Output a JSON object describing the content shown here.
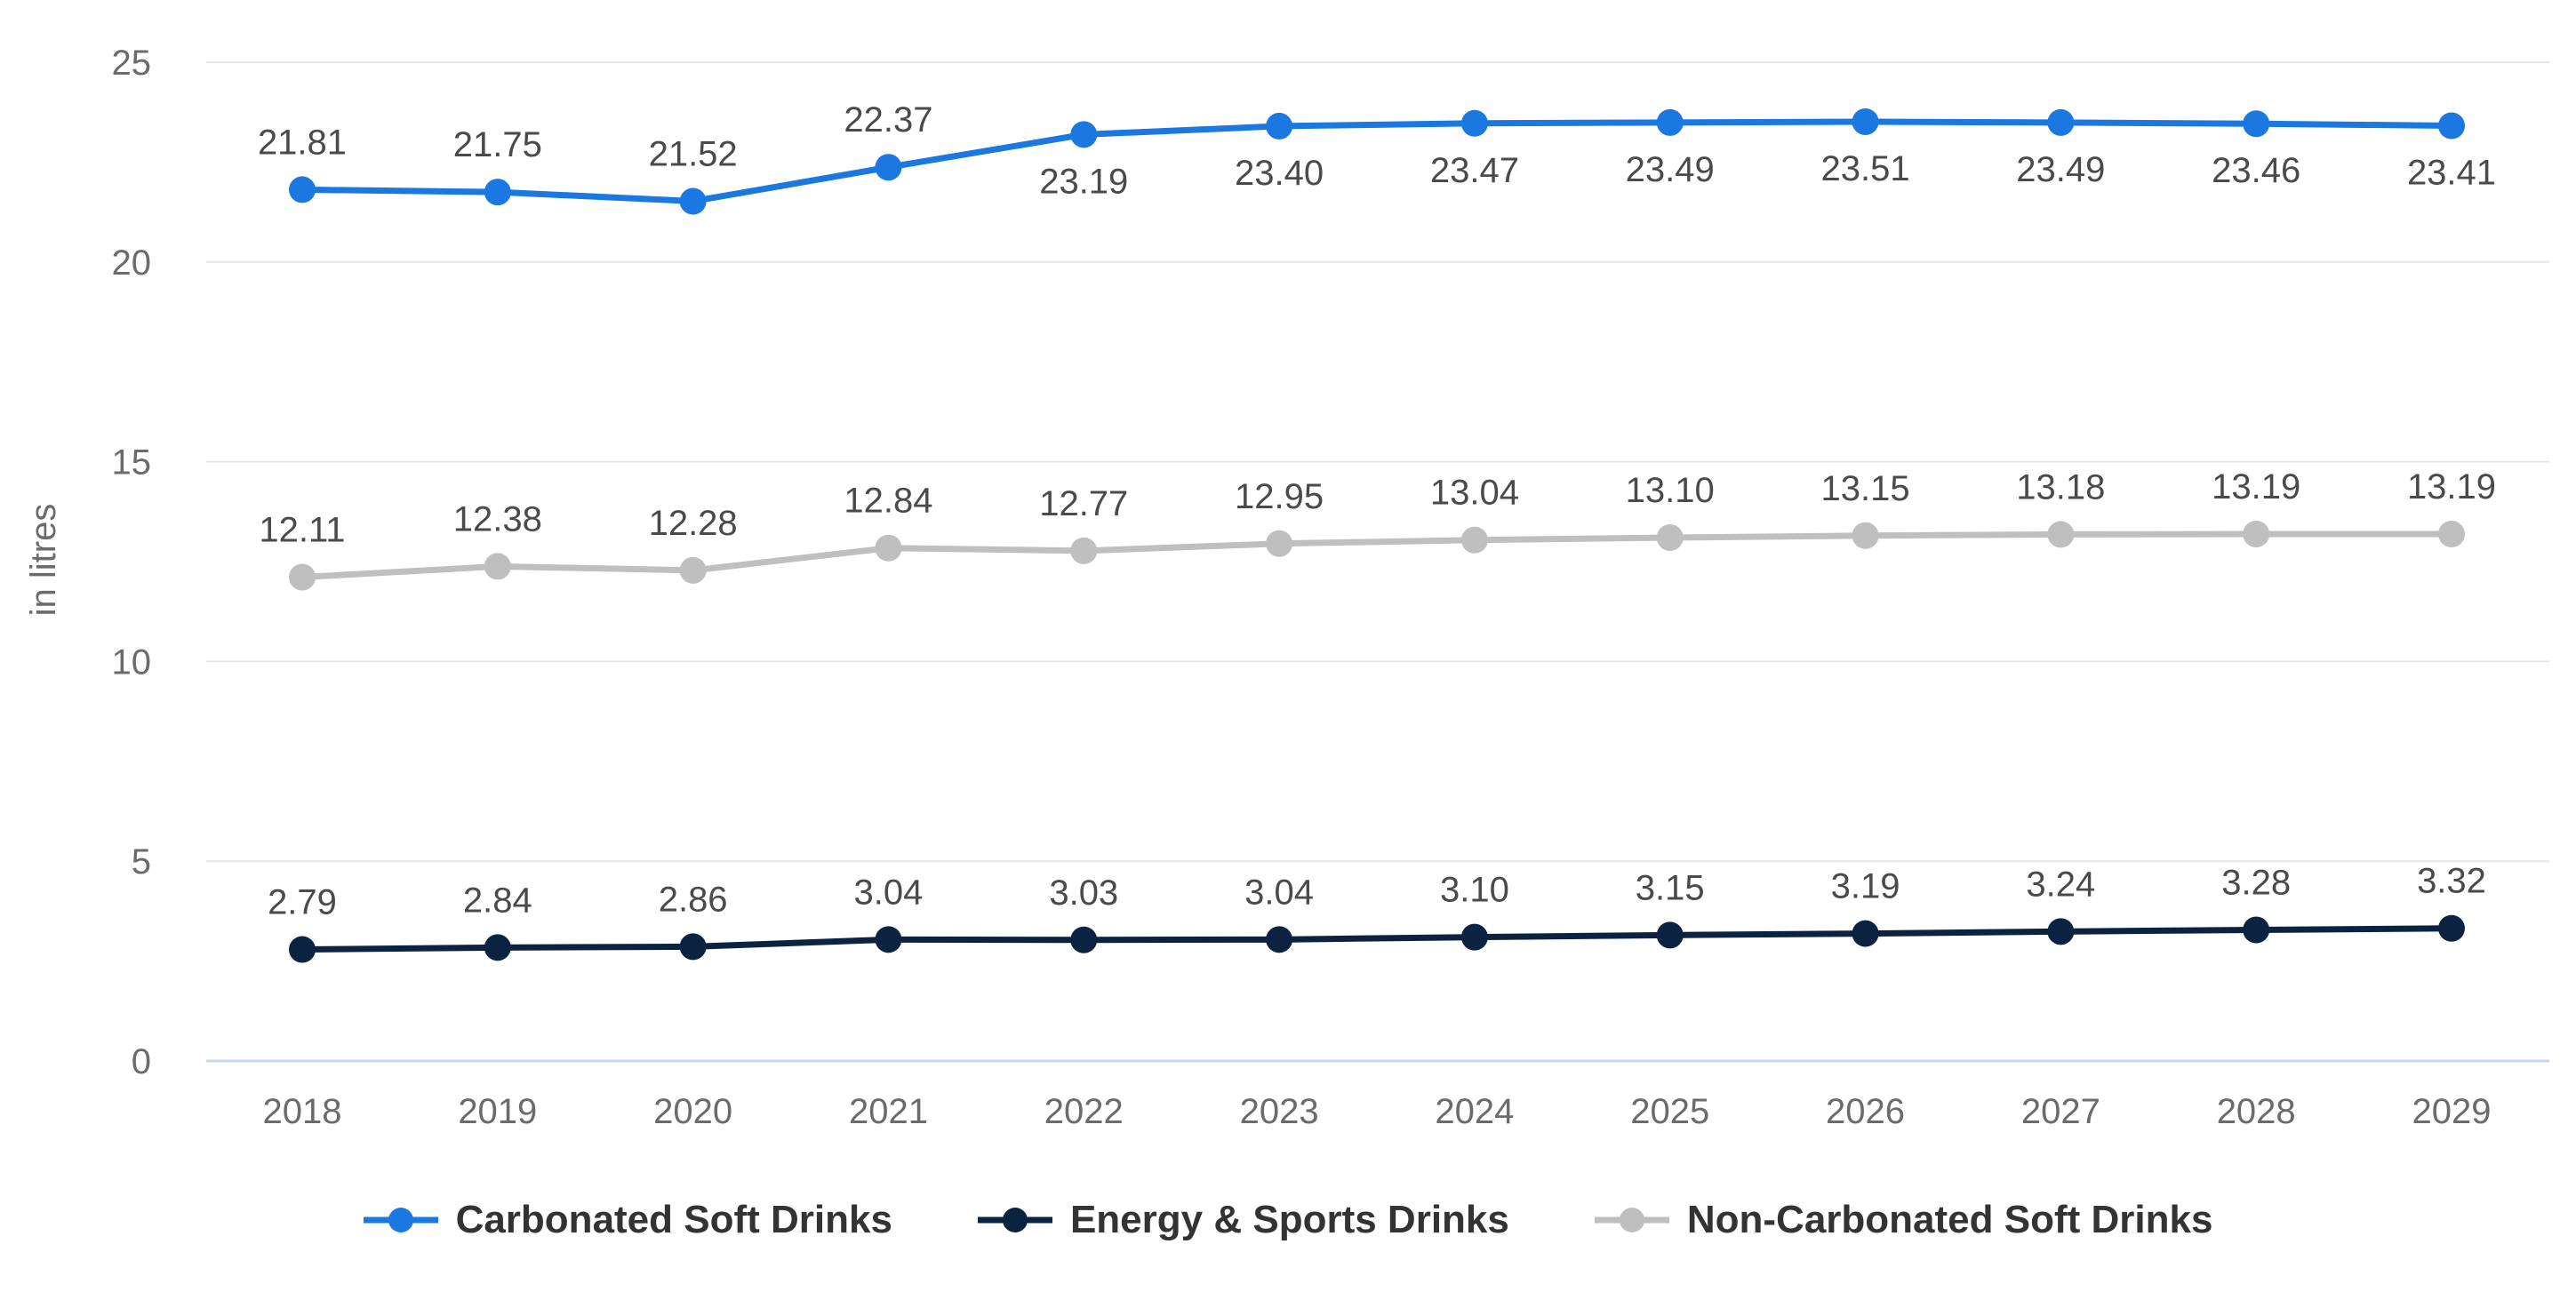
{
  "chart_data": {
    "type": "line",
    "title": "",
    "xlabel": "",
    "ylabel": "in litres",
    "ylim": [
      0,
      25
    ],
    "yticks": [
      0,
      5,
      10,
      15,
      20,
      25
    ],
    "categories": [
      "2018",
      "2019",
      "2020",
      "2021",
      "2022",
      "2023",
      "2024",
      "2025",
      "2026",
      "2027",
      "2028",
      "2029"
    ],
    "series": [
      {
        "name": "Carbonated Soft Drinks",
        "color": "#1a78e0",
        "values": [
          21.81,
          21.75,
          21.52,
          22.37,
          23.19,
          23.4,
          23.47,
          23.49,
          23.51,
          23.49,
          23.46,
          23.41
        ],
        "labels": [
          "21.81",
          "21.75",
          "21.52",
          "22.37",
          "23.19",
          "23.40",
          "23.47",
          "23.49",
          "23.51",
          "23.49",
          "23.46",
          "23.41"
        ],
        "label_position": [
          "above",
          "above",
          "above",
          "above",
          "below",
          "below",
          "below",
          "below",
          "below",
          "below",
          "below",
          "below"
        ]
      },
      {
        "name": "Energy & Sports Drinks",
        "color": "#0b2340",
        "values": [
          2.79,
          2.84,
          2.86,
          3.04,
          3.03,
          3.04,
          3.1,
          3.15,
          3.19,
          3.24,
          3.28,
          3.32
        ],
        "labels": [
          "2.79",
          "2.84",
          "2.86",
          "3.04",
          "3.03",
          "3.04",
          "3.10",
          "3.15",
          "3.19",
          "3.24",
          "3.28",
          "3.32"
        ],
        "label_position": [
          "above",
          "above",
          "above",
          "above",
          "above",
          "above",
          "above",
          "above",
          "above",
          "above",
          "above",
          "above"
        ]
      },
      {
        "name": "Non-Carbonated Soft Drinks",
        "color": "#bfbfbf",
        "values": [
          12.11,
          12.38,
          12.28,
          12.84,
          12.77,
          12.95,
          13.04,
          13.1,
          13.15,
          13.18,
          13.19,
          13.19
        ],
        "labels": [
          "12.11",
          "12.38",
          "12.28",
          "12.84",
          "12.77",
          "12.95",
          "13.04",
          "13.10",
          "13.15",
          "13.18",
          "13.19",
          "13.19"
        ],
        "label_position": [
          "above",
          "above",
          "above",
          "above",
          "above",
          "above",
          "above",
          "above",
          "above",
          "above",
          "above",
          "above"
        ]
      }
    ],
    "legend": {
      "placement": "bottom-center",
      "items": [
        "Carbonated Soft Drinks",
        "Energy & Sports Drinks",
        "Non-Carbonated Soft Drinks"
      ]
    },
    "grid": true
  },
  "colors": {
    "grid": "#e6e6e6",
    "baseline": "#c9d6e8"
  }
}
